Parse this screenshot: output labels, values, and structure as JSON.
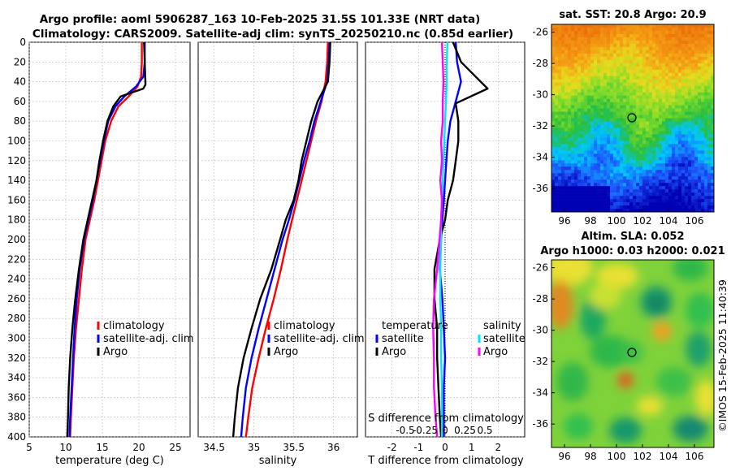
{
  "header": {
    "line1": "Argo profile: aoml 5906287_163 10-Feb-2025 31.5S 101.33E (NRT data)",
    "line2": "Climatology: CARS2009. Satellite-adj clim: synTS_20250210.nc (0.85d earlier)"
  },
  "footer_stamp": "©IMOS 15-Feb-2025 11:40:39",
  "colors": {
    "clim": "#ff0000",
    "sat": "#0000ff",
    "argo": "#000000",
    "sal_sat": "#00e5ff",
    "sal_argo": "#ff00ff"
  },
  "chart_data": [
    {
      "type": "line",
      "id": "temperature",
      "xlabel": "temperature (deg C)",
      "ylabel": "",
      "xlim": [
        5,
        27
      ],
      "ylim": [
        400,
        0
      ],
      "xticks": [
        5,
        10,
        15,
        20,
        25
      ],
      "yticks": [
        0,
        20,
        40,
        60,
        80,
        100,
        120,
        140,
        160,
        180,
        200,
        220,
        240,
        260,
        280,
        300,
        320,
        340,
        360,
        380,
        400
      ],
      "legend": [
        "climatology",
        "satellite-adj. clim",
        "Argo"
      ],
      "legend_position": "bottom-right",
      "series": [
        {
          "name": "climatology",
          "color": "#ff0000",
          "x": [
            20.4,
            20.4,
            20.3,
            19.8,
            18.6,
            17.2,
            16.2,
            15.4,
            14.9,
            14.4,
            13.9,
            13.3,
            12.7,
            12.2,
            11.8,
            11.4,
            11.1,
            10.9,
            10.7,
            10.6
          ],
          "y": [
            0,
            20,
            35,
            45,
            55,
            65,
            80,
            100,
            120,
            140,
            160,
            180,
            200,
            230,
            260,
            290,
            320,
            350,
            380,
            400
          ]
        },
        {
          "name": "satellite-adj. clim",
          "color": "#0000ff",
          "x": [
            20.8,
            20.8,
            20.6,
            19.6,
            18.0,
            16.8,
            15.8,
            15.2,
            14.7,
            14.2,
            13.7,
            13.1,
            12.5,
            11.9,
            11.5,
            11.2,
            11.0,
            10.8,
            10.6,
            10.5
          ],
          "y": [
            0,
            20,
            35,
            45,
            55,
            65,
            80,
            100,
            120,
            140,
            160,
            180,
            200,
            230,
            260,
            290,
            320,
            350,
            380,
            400
          ]
        },
        {
          "name": "Argo",
          "color": "#000000",
          "x": [
            20.7,
            20.8,
            20.9,
            20.6,
            17.5,
            16.5,
            15.7,
            15.1,
            14.6,
            14.2,
            13.6,
            13.0,
            12.4,
            11.8,
            11.3,
            10.9,
            10.6,
            10.4,
            10.3,
            10.2
          ],
          "y": [
            0,
            20,
            43,
            47,
            55,
            65,
            80,
            100,
            120,
            140,
            160,
            180,
            200,
            230,
            260,
            290,
            320,
            350,
            380,
            400
          ]
        }
      ]
    },
    {
      "type": "line",
      "id": "salinity",
      "xlabel": "salinity",
      "ylabel": "",
      "xlim": [
        34.3,
        36.3
      ],
      "ylim": [
        400,
        0
      ],
      "xticks": [
        34.5,
        35,
        35.5,
        36
      ],
      "xtick_labels": [
        "34.5",
        "35",
        "35.5",
        "36"
      ],
      "legend": [
        "climatology",
        "satellite-adj. clim",
        "Argo"
      ],
      "legend_position": "bottom-right",
      "series": [
        {
          "name": "climatology",
          "color": "#ff0000",
          "x": [
            35.93,
            35.92,
            35.9,
            35.85,
            35.78,
            35.72,
            35.66,
            35.6,
            35.54,
            35.48,
            35.42,
            35.34,
            35.25,
            35.15,
            35.06,
            34.98,
            34.93,
            34.9
          ],
          "y": [
            0,
            20,
            40,
            60,
            80,
            100,
            120,
            140,
            160,
            180,
            200,
            230,
            260,
            290,
            320,
            350,
            380,
            400
          ]
        },
        {
          "name": "satellite-adj. clim",
          "color": "#0000ff",
          "x": [
            35.95,
            35.94,
            35.92,
            35.84,
            35.76,
            35.7,
            35.63,
            35.57,
            35.51,
            35.44,
            35.36,
            35.26,
            35.16,
            35.06,
            34.97,
            34.9,
            34.86,
            34.84
          ],
          "y": [
            0,
            20,
            40,
            60,
            80,
            100,
            120,
            140,
            160,
            180,
            200,
            230,
            260,
            290,
            320,
            350,
            380,
            400
          ]
        },
        {
          "name": "Argo",
          "color": "#000000",
          "x": [
            35.96,
            35.95,
            35.93,
            35.8,
            35.72,
            35.66,
            35.6,
            35.56,
            35.5,
            35.4,
            35.33,
            35.22,
            35.08,
            34.97,
            34.87,
            34.8,
            34.76,
            34.74
          ],
          "y": [
            0,
            20,
            40,
            60,
            80,
            100,
            120,
            140,
            160,
            180,
            200,
            230,
            260,
            290,
            320,
            350,
            380,
            400
          ]
        }
      ]
    },
    {
      "type": "line",
      "id": "difference",
      "xlabel": "T difference from climatology",
      "xlabel_top": "S difference from climatology",
      "xlim": [
        -3,
        3
      ],
      "ylim": [
        400,
        0
      ],
      "xticks": [
        -2,
        -1,
        0,
        1,
        2
      ],
      "xtick_labels": [
        "-2",
        "-1",
        "0",
        "1",
        "2"
      ],
      "s_ticks": [
        -0.5,
        -0.25,
        0,
        0.25,
        0.5
      ],
      "s_tick_labels": [
        "-0.5",
        "-0.25",
        "0",
        "0.25",
        "0.5"
      ],
      "legend_temperature_title": "temperature",
      "legend_salinity_title": "salinity",
      "legend_temperature": [
        "satellite",
        "Argo"
      ],
      "legend_salinity": [
        "satellite",
        "Argo"
      ],
      "series": [
        {
          "name": "temperature satellite",
          "color": "#0000ff",
          "x": [
            0.4,
            0.45,
            0.6,
            0.4,
            0.2,
            0.1,
            0.05,
            0.0,
            -0.05,
            -0.1,
            -0.15,
            -0.2,
            -0.1,
            -0.05,
            0.0,
            -0.05,
            -0.05,
            -0.05
          ],
          "y": [
            0,
            20,
            40,
            60,
            80,
            100,
            120,
            140,
            160,
            180,
            200,
            230,
            260,
            290,
            320,
            350,
            380,
            400
          ]
        },
        {
          "name": "temperature Argo",
          "color": "#000000",
          "x": [
            0.3,
            0.6,
            1.6,
            0.4,
            0.5,
            0.5,
            0.4,
            0.3,
            0.1,
            0.0,
            -0.2,
            -0.4,
            -0.4,
            -0.3,
            -0.3,
            -0.25,
            -0.2,
            -0.15
          ],
          "y": [
            0,
            20,
            47,
            62,
            80,
            100,
            120,
            140,
            160,
            180,
            200,
            230,
            260,
            290,
            320,
            350,
            380,
            400
          ]
        },
        {
          "name": "salinity satellite",
          "color": "#00e5ff",
          "x": [
            0.03,
            0.02,
            0.02,
            0.01,
            0.0,
            -0.01,
            -0.02,
            -0.03,
            -0.04,
            -0.05,
            -0.05,
            -0.06,
            -0.06,
            -0.05,
            -0.05,
            -0.04,
            -0.04,
            -0.04
          ],
          "y": [
            0,
            20,
            40,
            60,
            80,
            100,
            120,
            140,
            160,
            180,
            200,
            230,
            260,
            290,
            320,
            350,
            380,
            400
          ]
        },
        {
          "name": "salinity Argo",
          "color": "#ff00ff",
          "x": [
            -0.04,
            -0.03,
            -0.02,
            -0.03,
            -0.03,
            -0.05,
            -0.04,
            -0.06,
            -0.04,
            -0.05,
            -0.07,
            -0.1,
            -0.14,
            -0.15,
            -0.14,
            -0.14,
            -0.12,
            -0.1
          ],
          "y": [
            0,
            20,
            40,
            60,
            80,
            100,
            120,
            140,
            160,
            180,
            200,
            230,
            260,
            290,
            320,
            350,
            380,
            400
          ]
        }
      ]
    },
    {
      "type": "heatmap",
      "id": "sst_map",
      "title": "sat. SST: 20.8 Argo: 20.9",
      "xticks": [
        96,
        98,
        100,
        102,
        104,
        106
      ],
      "yticks": [
        -26,
        -28,
        -30,
        -32,
        -34,
        -36
      ],
      "xlim": [
        95,
        107.5
      ],
      "ylim": [
        -37.5,
        -25.5
      ],
      "marker": {
        "lon": 101.33,
        "lat": -31.5
      }
    },
    {
      "type": "heatmap",
      "id": "sla_map",
      "title_line1": "Altim. SLA: 0.052",
      "title_line2": "Argo h1000: 0.03 h2000: 0.021",
      "xticks": [
        96,
        98,
        100,
        102,
        104,
        106
      ],
      "yticks": [
        -26,
        -28,
        -30,
        -32,
        -34,
        -36
      ],
      "xlim": [
        95,
        107.5
      ],
      "ylim": [
        -37.5,
        -25.5
      ],
      "marker": {
        "lon": 101.33,
        "lat": -31.5
      }
    }
  ]
}
